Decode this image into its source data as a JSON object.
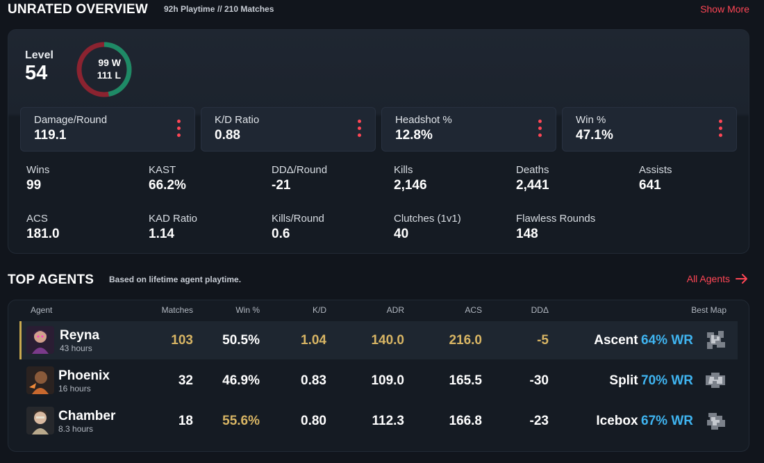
{
  "header": {
    "title": "UNRATED OVERVIEW",
    "playtime": "92h Playtime",
    "matches": "// 210 Matches",
    "show_more": "Show More"
  },
  "overview": {
    "level_label": "Level",
    "level_value": "54",
    "wins_text": "99",
    "wins_suffix": "W",
    "losses_text": "111",
    "losses_suffix": "L",
    "win_fraction": 0.471,
    "colors": {
      "win": "#1e8a66",
      "loss": "#8b2330",
      "accent": "#ff4655"
    },
    "highlight_stats": [
      {
        "label": "Damage/Round",
        "value": "119.1"
      },
      {
        "label": "K/D Ratio",
        "value": "0.88"
      },
      {
        "label": "Headshot %",
        "value": "12.8%"
      },
      {
        "label": "Win %",
        "value": "47.1%"
      }
    ],
    "stats": [
      {
        "label": "Wins",
        "value": "99"
      },
      {
        "label": "KAST",
        "value": "66.2%"
      },
      {
        "label": "DDΔ/Round",
        "value": "-21"
      },
      {
        "label": "Kills",
        "value": "2,146"
      },
      {
        "label": "Deaths",
        "value": "2,441"
      },
      {
        "label": "Assists",
        "value": "641"
      },
      {
        "label": "ACS",
        "value": "181.0"
      },
      {
        "label": "KAD Ratio",
        "value": "1.14"
      },
      {
        "label": "Kills/Round",
        "value": "0.6"
      },
      {
        "label": "Clutches (1v1)",
        "value": "40"
      },
      {
        "label": "Flawless Rounds",
        "value": "148"
      }
    ]
  },
  "agents": {
    "title": "TOP AGENTS",
    "subtitle": "Based on lifetime agent playtime.",
    "all_agents": "All Agents",
    "columns": {
      "agent": "Agent",
      "matches": "Matches",
      "win": "Win %",
      "kd": "K/D",
      "adr": "ADR",
      "acs": "ACS",
      "dd": "DDΔ",
      "best_map": "Best Map"
    },
    "rows": [
      {
        "name": "Reyna",
        "hours": "43 hours",
        "matches": "103",
        "win": "50.5%",
        "kd": "1.04",
        "adr": "140.0",
        "acs": "216.0",
        "dd": "-5",
        "map": "Ascent",
        "map_wr": "64% WR",
        "avatar_color": "#7a3a8a"
      },
      {
        "name": "Phoenix",
        "hours": "16 hours",
        "matches": "32",
        "win": "46.9%",
        "kd": "0.83",
        "adr": "109.0",
        "acs": "165.5",
        "dd": "-30",
        "map": "Split",
        "map_wr": "70% WR",
        "avatar_color": "#c8682e"
      },
      {
        "name": "Chamber",
        "hours": "8.3 hours",
        "matches": "18",
        "win": "55.6%",
        "kd": "0.80",
        "adr": "112.3",
        "acs": "166.8",
        "dd": "-23",
        "map": "Icebox",
        "map_wr": "67% WR",
        "avatar_color": "#b9a98c"
      }
    ]
  }
}
